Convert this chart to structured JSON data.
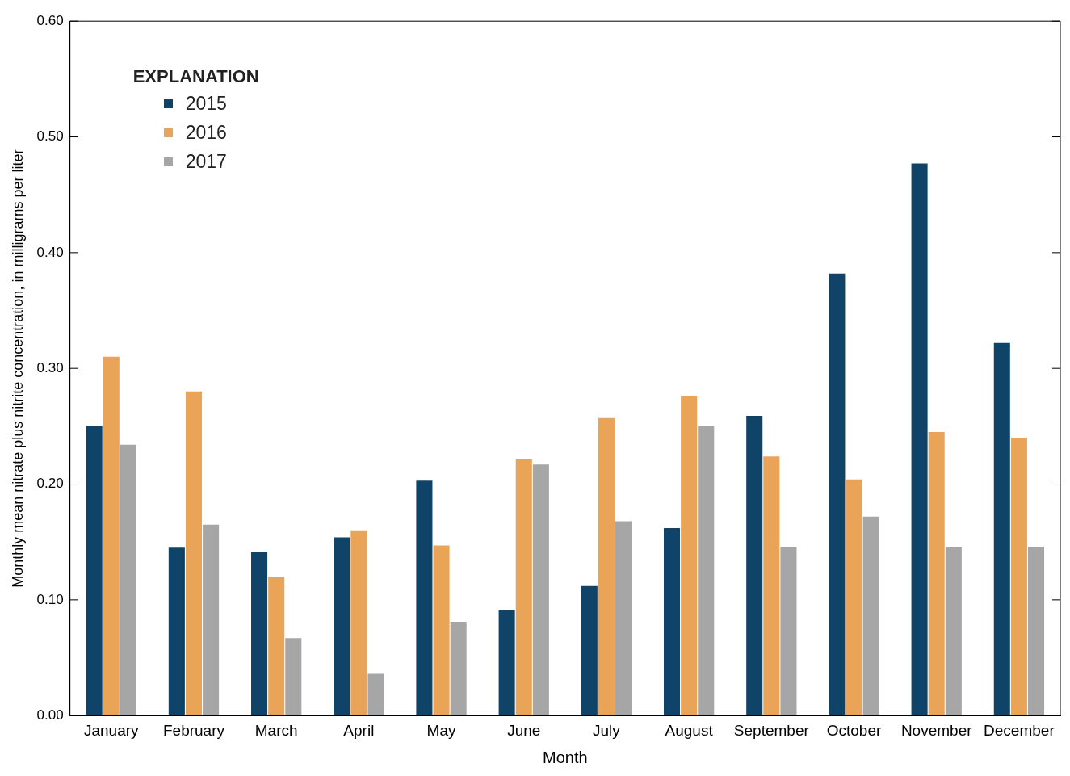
{
  "chart_data": {
    "type": "bar",
    "xlabel": "Month",
    "ylabel": "Monthly mean nitrate plus nitrite concentration, in milligrams per liter",
    "legend_title": "EXPLANATION",
    "legend": "top left",
    "grid": false,
    "categories": [
      "January",
      "February",
      "March",
      "April",
      "May",
      "June",
      "July",
      "August",
      "September",
      "October",
      "November",
      "December"
    ],
    "series": [
      {
        "name": "2015",
        "color": "#0f4468",
        "values": [
          0.25,
          0.145,
          0.141,
          0.154,
          0.203,
          0.091,
          0.112,
          0.162,
          0.259,
          0.382,
          0.477,
          0.322
        ]
      },
      {
        "name": "2016",
        "color": "#eaa458",
        "values": [
          0.31,
          0.28,
          0.12,
          0.16,
          0.147,
          0.222,
          0.257,
          0.276,
          0.224,
          0.204,
          0.245,
          0.24
        ]
      },
      {
        "name": "2017",
        "color": "#a6a6a6",
        "values": [
          0.234,
          0.165,
          0.067,
          0.036,
          0.081,
          0.217,
          0.168,
          0.25,
          0.146,
          0.172,
          0.146,
          0.146
        ]
      }
    ],
    "ylim": [
      0,
      0.6
    ],
    "yticks": [
      {
        "value": 0,
        "label": "0.00"
      },
      {
        "value": 0.1,
        "label": "0.10"
      },
      {
        "value": 0.2,
        "label": "0.20"
      },
      {
        "value": 0.3,
        "label": "0.30"
      },
      {
        "value": 0.4,
        "label": "0.40"
      },
      {
        "value": 0.5,
        "label": "0.50"
      },
      {
        "value": 0.6,
        "label": "0.60"
      }
    ]
  }
}
